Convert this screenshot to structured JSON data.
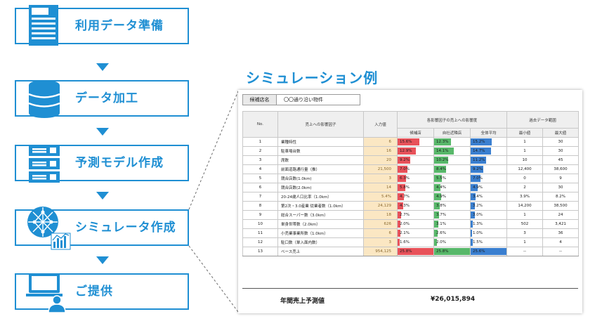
{
  "steps": [
    {
      "label": "利用データ準備",
      "icon": "document-icon"
    },
    {
      "label": "データ加工",
      "icon": "database-icon"
    },
    {
      "label": "予測モデル作成",
      "icon": "server-icon"
    },
    {
      "label": "シミュレータ作成",
      "icon": "network-chart-icon"
    },
    {
      "label": "ご提供",
      "icon": "computer-user-icon"
    }
  ],
  "colors": {
    "accent": "#1f8fd3",
    "bar_red": "#e8525a",
    "bar_green": "#58b86a",
    "bar_blue": "#3a7fd0",
    "input_fill": "#fbe7c3"
  },
  "simulation": {
    "title": "シミュレーション例",
    "candidate_label": "候補店名",
    "candidate_value": "〇〇通り沿い物件",
    "headers": {
      "no": "No.",
      "factor": "売上への影響因子",
      "input": "入力値",
      "impact_group": "各影響因子の売上への影響度",
      "candidate": "候補店",
      "own_store": "自社近隣店",
      "overall_avg": "全体平均",
      "past_group": "過去データ範囲",
      "min": "最小値",
      "max": "最大値"
    },
    "rows": [
      {
        "no": "1",
        "factor": "業種特性",
        "input": "6",
        "c": "15.6%",
        "cv": 15.6,
        "s": "12.3%",
        "sv": 12.3,
        "a": "15.2%",
        "av": 15.2,
        "min": "1",
        "max": "30"
      },
      {
        "no": "2",
        "factor": "駐車場台数",
        "input": "16",
        "c": "12.9%",
        "cv": 12.9,
        "s": "14.1%",
        "sv": 14.1,
        "a": "14.7%",
        "av": 14.7,
        "min": "1",
        "max": "30"
      },
      {
        "no": "3",
        "factor": "席数",
        "input": "20",
        "c": "9.2%",
        "cv": 9.2,
        "s": "10.2%",
        "sv": 10.2,
        "a": "11.2%",
        "av": 11.2,
        "min": "10",
        "max": "45"
      },
      {
        "no": "4",
        "factor": "前面道路通行量（推）",
        "input": "21,500",
        "c": "7.0%",
        "cv": 7.0,
        "s": "8.4%",
        "sv": 8.4,
        "a": "9.2%",
        "av": 9.2,
        "min": "12,400",
        "max": "38,600"
      },
      {
        "no": "5",
        "factor": "競合店数(1.0km)",
        "input": "3",
        "c": "6.3%",
        "cv": 6.3,
        "s": "5.5%",
        "sv": 5.5,
        "a": "7.0%",
        "av": 7.0,
        "min": "0",
        "max": "9"
      },
      {
        "no": "6",
        "factor": "競合店数(2.0km)",
        "input": "14",
        "c": "5.8%",
        "cv": 5.8,
        "s": "4.4%",
        "sv": 4.4,
        "a": "4.9%",
        "av": 4.9,
        "min": "2",
        "max": "30"
      },
      {
        "no": "7",
        "factor": "20-24歳人口比率（1.0km）",
        "input": "5.4%",
        "c": "4.7%",
        "cv": 4.7,
        "s": "4.9%",
        "sv": 4.9,
        "a": "3.4%",
        "av": 3.4,
        "min": "3.9%",
        "max": "8.2%"
      },
      {
        "no": "8",
        "factor": "第2次・3.0産業 従業者数（1.0km）",
        "input": "24,129",
        "c": "4.3%",
        "cv": 4.3,
        "s": "3.8%",
        "sv": 3.8,
        "a": "3.2%",
        "av": 3.2,
        "min": "14,200",
        "max": "38,500"
      },
      {
        "no": "9",
        "factor": "総合スーパー数（3.0km）",
        "input": "18",
        "c": "2.7%",
        "cv": 2.7,
        "s": "3.7%",
        "sv": 3.7,
        "a": "3.0%",
        "av": 3.0,
        "min": "1",
        "max": "24"
      },
      {
        "no": "10",
        "factor": "単身世帯数（2.0km）",
        "input": "626",
        "c": "2.0%",
        "cv": 2.0,
        "s": "3.1%",
        "sv": 3.1,
        "a": "1.3%",
        "av": 1.3,
        "min": "502",
        "max": "3,421"
      },
      {
        "no": "11",
        "factor": "小売業事業所数（1.0km）",
        "input": "6",
        "c": "2.1%",
        "cv": 2.1,
        "s": "2.6%",
        "sv": 2.6,
        "a": "1.0%",
        "av": 1.0,
        "min": "3",
        "max": "36"
      },
      {
        "no": "12",
        "factor": "駐口数（単入面内数）",
        "input": "3",
        "c": "1.6%",
        "cv": 1.6,
        "s": "2.0%",
        "sv": 2.0,
        "a": "1.5%",
        "av": 1.5,
        "min": "1",
        "max": "4"
      },
      {
        "no": "13",
        "factor": "ベース売上",
        "input": "954,125",
        "c": "25.8%",
        "cv": 25.8,
        "s": "25.8%",
        "sv": 25.8,
        "a": "25.6%",
        "av": 25.6,
        "min": "--",
        "max": "--"
      }
    ],
    "total_label": "年間売上予測値",
    "total_value": "¥26,015,894"
  }
}
